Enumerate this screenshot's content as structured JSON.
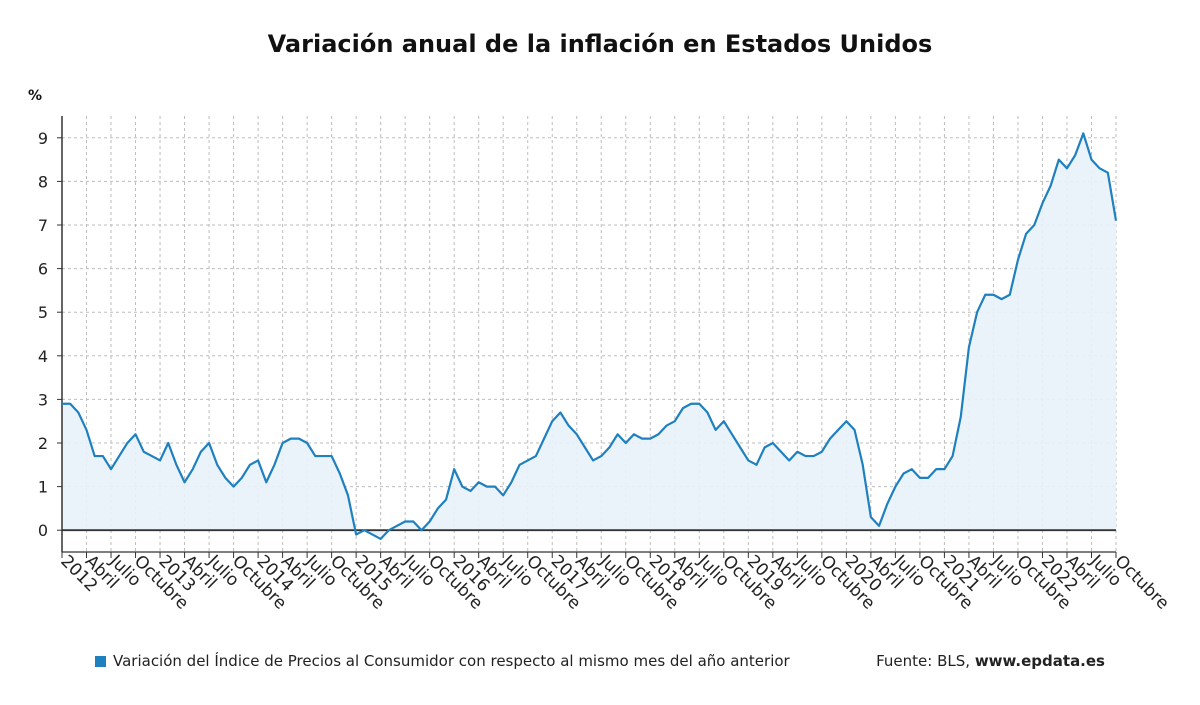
{
  "title": "Variación anual de la inflación en Estados Unidos",
  "legend_label": "Variación del Índice de Precios al Consumidor con respecto al mismo mes del año anterior",
  "source_label": "Fuente: BLS,",
  "source_site": "www.epdata.es",
  "colors": {
    "line": "#1f80c0",
    "fill": "#e8f2fa",
    "grid": "#bdbdbd",
    "axis": "#333333"
  },
  "chart_data": {
    "type": "area",
    "title": "Variación anual de la inflación en Estados Unidos",
    "ylabel": "%",
    "ylim": [
      -0.5,
      9.5
    ],
    "yticks": [
      0,
      1,
      2,
      3,
      4,
      5,
      6,
      7,
      8,
      9
    ],
    "grid": true,
    "x_start": "2012-01",
    "x_end": "2022-10",
    "x_tick_labels": [
      "2012",
      "Abril",
      "Julio",
      "Octubre",
      "2013",
      "Abril",
      "Julio",
      "Octubre",
      "2014",
      "Abril",
      "Julio",
      "Octubre",
      "2015",
      "Abril",
      "Julio",
      "Octubre",
      "2016",
      "Abril",
      "Julio",
      "Octubre",
      "2017",
      "Abril",
      "Julio",
      "Octubre",
      "2018",
      "Abril",
      "Julio",
      "Octubre",
      "2019",
      "Abril",
      "Julio",
      "Octubre",
      "2020",
      "Abril",
      "Julio",
      "Octubre",
      "2021",
      "Abril",
      "Julio",
      "Octubre",
      "2022",
      "Abril",
      "Julio",
      "Octubre"
    ],
    "series": [
      {
        "name": "Variación del Índice de Precios al Consumidor con respecto al mismo mes del año anterior",
        "values": [
          2.9,
          2.9,
          2.7,
          2.3,
          1.7,
          1.7,
          1.4,
          1.7,
          2.0,
          2.2,
          1.8,
          1.7,
          1.6,
          2.0,
          1.5,
          1.1,
          1.4,
          1.8,
          2.0,
          1.5,
          1.2,
          1.0,
          1.2,
          1.5,
          1.6,
          1.1,
          1.5,
          2.0,
          2.1,
          2.1,
          2.0,
          1.7,
          1.7,
          1.7,
          1.3,
          0.8,
          -0.1,
          0.0,
          -0.1,
          -0.2,
          0.0,
          0.1,
          0.2,
          0.2,
          0.0,
          0.2,
          0.5,
          0.7,
          1.4,
          1.0,
          0.9,
          1.1,
          1.0,
          1.0,
          0.8,
          1.1,
          1.5,
          1.6,
          1.7,
          2.1,
          2.5,
          2.7,
          2.4,
          2.2,
          1.9,
          1.6,
          1.7,
          1.9,
          2.2,
          2.0,
          2.2,
          2.1,
          2.1,
          2.2,
          2.4,
          2.5,
          2.8,
          2.9,
          2.9,
          2.7,
          2.3,
          2.5,
          2.2,
          1.9,
          1.6,
          1.5,
          1.9,
          2.0,
          1.8,
          1.6,
          1.8,
          1.7,
          1.7,
          1.8,
          2.1,
          2.3,
          2.5,
          2.3,
          1.5,
          0.3,
          0.1,
          0.6,
          1.0,
          1.3,
          1.4,
          1.2,
          1.2,
          1.4,
          1.4,
          1.7,
          2.6,
          4.2,
          5.0,
          5.4,
          5.4,
          5.3,
          5.4,
          6.2,
          6.8,
          7.0,
          7.5,
          7.9,
          8.5,
          8.3,
          8.6,
          9.1,
          8.5,
          8.3,
          8.2,
          7.1
        ]
      }
    ]
  }
}
